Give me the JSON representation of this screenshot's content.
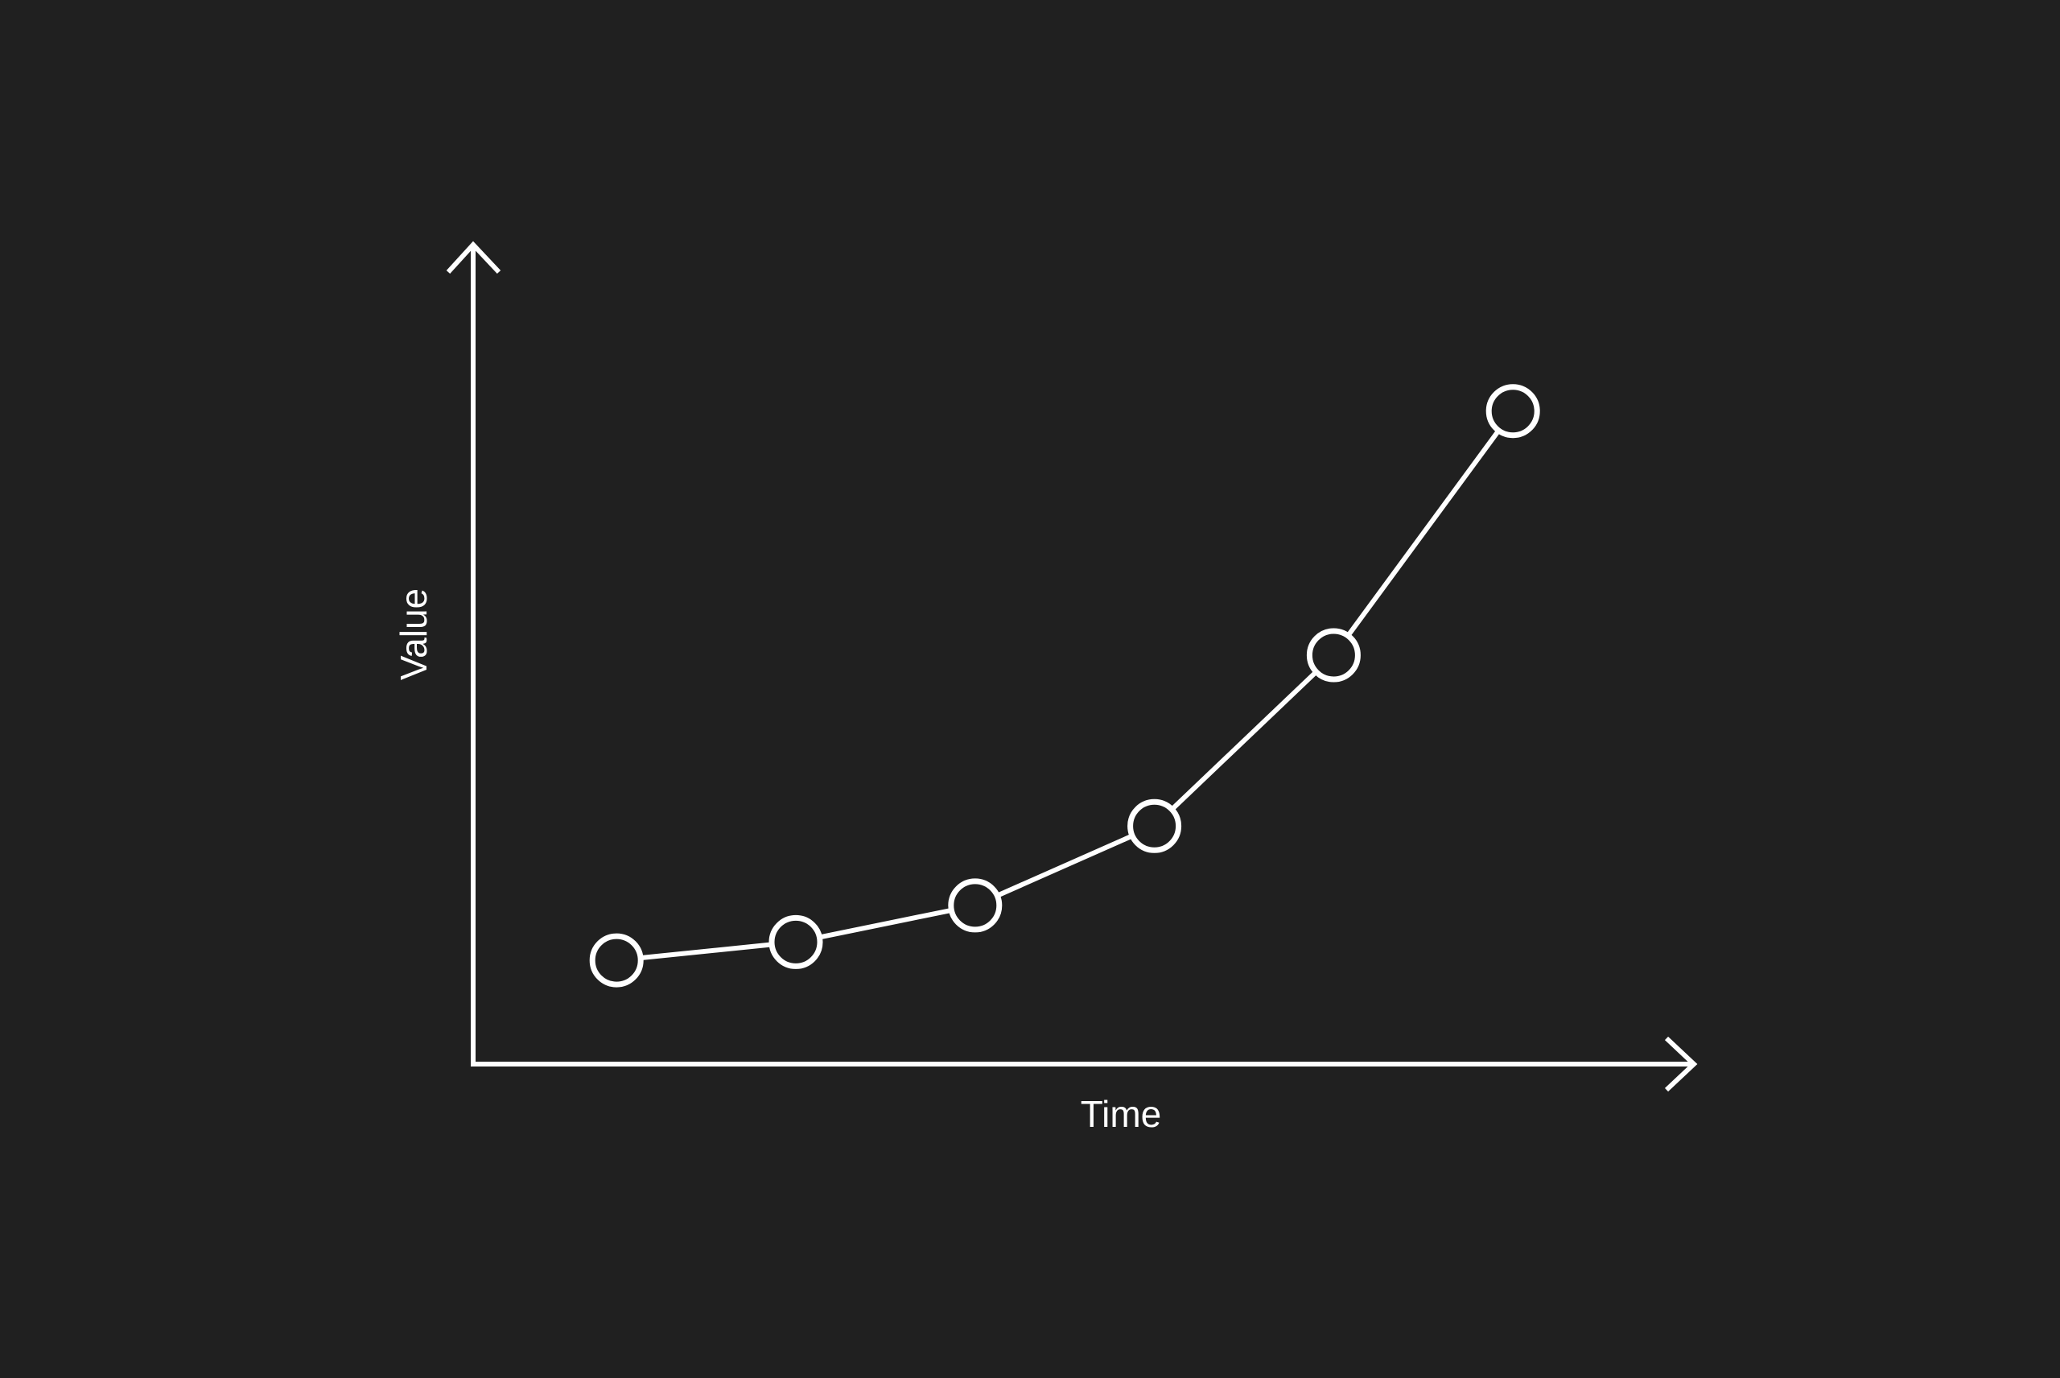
{
  "colors": {
    "background": "#202020",
    "foreground": "#ffffff"
  },
  "chart_data": {
    "type": "line",
    "title": "",
    "xlabel": "Time",
    "ylabel": "Value",
    "x": [
      1,
      2,
      3,
      4,
      5,
      6
    ],
    "series": [
      {
        "values": [
          13,
          16,
          22,
          35,
          63,
          103
        ],
        "marker": "hollow-circle"
      }
    ],
    "xlim": [
      0.2,
      7
    ],
    "ylim": [
      -4,
      130
    ],
    "grid": false,
    "legend": "none",
    "tick_labels": false
  }
}
